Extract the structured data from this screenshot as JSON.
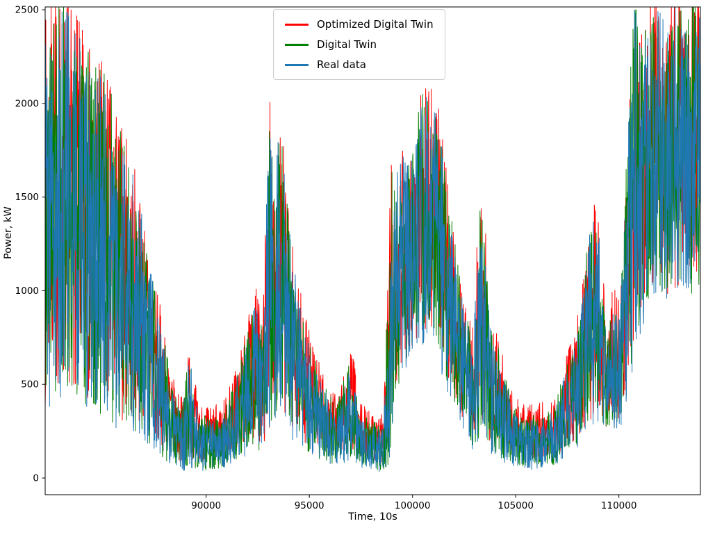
{
  "figure": {
    "background": "#ffffff"
  },
  "chart_data": {
    "type": "line",
    "title": "",
    "xlabel": "Time, 10s",
    "ylabel": "Power, kW",
    "xlim": [
      82200,
      113950
    ],
    "ylim": [
      -89,
      2515
    ],
    "xticks": [
      90000,
      95000,
      100000,
      105000,
      110000
    ],
    "yticks": [
      0,
      500,
      1000,
      1500,
      2000,
      2500
    ],
    "grid": false,
    "axis": {
      "spine_color": "#000000",
      "tick_color": "#000000",
      "text_color": "#000000"
    },
    "legend": {
      "position": "upper center",
      "entries": [
        "Optimized Digital Twin",
        "Digital Twin",
        "Real data"
      ]
    },
    "series": [
      {
        "name": "Optimized Digital Twin",
        "color": "#ff0000",
        "hi_offset": 85,
        "lo_offset": 55
      },
      {
        "name": "Digital Twin",
        "color": "#008000",
        "hi_offset": 30,
        "lo_offset": 12
      },
      {
        "name": "Real data",
        "color": "#1f77b4",
        "hi_offset": 0,
        "lo_offset": 0
      }
    ],
    "envelope_note": "Noisy high-frequency signal; each point is [x, min, max] envelope of the oscillating power signal in kW",
    "envelope_points": [
      [
        82200,
        300,
        2400
      ],
      [
        82700,
        400,
        2550
      ],
      [
        83300,
        450,
        2500
      ],
      [
        83900,
        400,
        2350
      ],
      [
        84500,
        350,
        2200
      ],
      [
        85100,
        300,
        2150
      ],
      [
        85700,
        250,
        1900
      ],
      [
        86300,
        250,
        1700
      ],
      [
        86900,
        200,
        1400
      ],
      [
        87500,
        120,
        1000
      ],
      [
        88000,
        80,
        700
      ],
      [
        88400,
        60,
        450
      ],
      [
        88800,
        30,
        350
      ],
      [
        89200,
        50,
        650
      ],
      [
        89600,
        30,
        330
      ],
      [
        90200,
        30,
        300
      ],
      [
        90800,
        40,
        320
      ],
      [
        91400,
        80,
        500
      ],
      [
        92000,
        120,
        750
      ],
      [
        92400,
        150,
        950
      ],
      [
        92750,
        120,
        800
      ],
      [
        93050,
        200,
        2020
      ],
      [
        93300,
        300,
        1550
      ],
      [
        93550,
        350,
        1900
      ],
      [
        93800,
        300,
        1650
      ],
      [
        94100,
        200,
        1250
      ],
      [
        94500,
        150,
        950
      ],
      [
        95000,
        120,
        700
      ],
      [
        95600,
        80,
        500
      ],
      [
        96300,
        60,
        350
      ],
      [
        96800,
        80,
        550
      ],
      [
        97100,
        90,
        620
      ],
      [
        97400,
        60,
        320
      ],
      [
        98000,
        40,
        280
      ],
      [
        98600,
        20,
        260
      ],
      [
        98950,
        80,
        1600
      ],
      [
        99100,
        400,
        1650
      ],
      [
        99500,
        550,
        1750
      ],
      [
        100000,
        600,
        1700
      ],
      [
        100400,
        700,
        2050
      ],
      [
        100900,
        750,
        2080
      ],
      [
        101300,
        600,
        1900
      ],
      [
        101700,
        450,
        1500
      ],
      [
        102100,
        350,
        1200
      ],
      [
        102500,
        250,
        900
      ],
      [
        102900,
        150,
        700
      ],
      [
        103250,
        200,
        1430
      ],
      [
        103500,
        250,
        1300
      ],
      [
        103800,
        120,
        800
      ],
      [
        104300,
        90,
        620
      ],
      [
        104800,
        60,
        380
      ],
      [
        105500,
        40,
        300
      ],
      [
        106200,
        50,
        320
      ],
      [
        106900,
        60,
        360
      ],
      [
        107400,
        100,
        560
      ],
      [
        107900,
        150,
        700
      ],
      [
        108400,
        200,
        1150
      ],
      [
        108800,
        280,
        1480
      ],
      [
        109100,
        300,
        1250
      ],
      [
        109400,
        200,
        700
      ],
      [
        109700,
        250,
        960
      ],
      [
        110050,
        260,
        850
      ],
      [
        110400,
        400,
        1800
      ],
      [
        110750,
        600,
        2550
      ],
      [
        111100,
        750,
        2300
      ],
      [
        111500,
        950,
        2500
      ],
      [
        111900,
        1000,
        2550
      ],
      [
        112300,
        900,
        2400
      ],
      [
        112700,
        950,
        2550
      ],
      [
        113100,
        1000,
        2500
      ],
      [
        113500,
        950,
        2550
      ],
      [
        113950,
        1000,
        2500
      ]
    ],
    "samples_per_series": 2100,
    "noise_seed": 7
  }
}
